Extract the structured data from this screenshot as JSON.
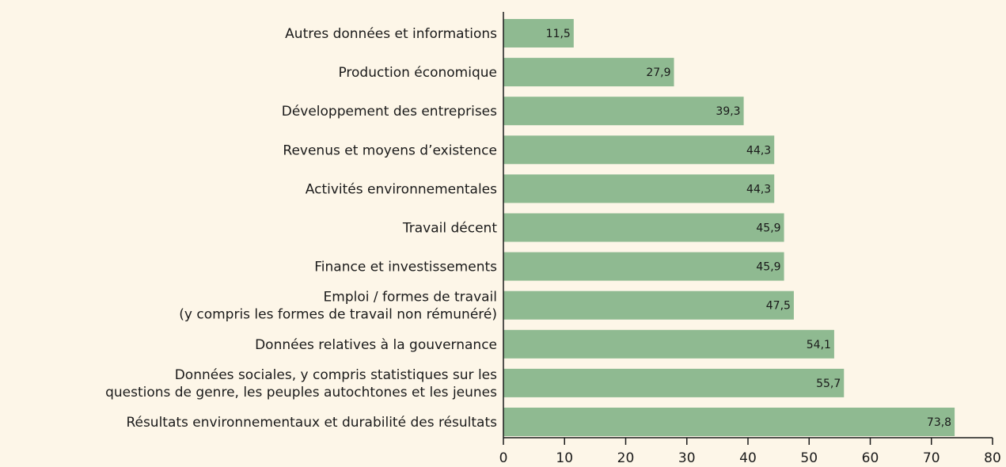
{
  "chart_data": {
    "type": "barh",
    "categories": [
      [
        "Autres données et informations"
      ],
      [
        "Production économique"
      ],
      [
        "Développement des entreprises"
      ],
      [
        "Revenus et moyens d’existence"
      ],
      [
        "Activités environnementales"
      ],
      [
        "Travail décent"
      ],
      [
        "Finance et investissements"
      ],
      [
        "Emploi / formes de travail",
        "(y compris les formes de travail non rémunéré)"
      ],
      [
        "Données relatives à la gouvernance"
      ],
      [
        "Données sociales, y compris statistiques sur les",
        "questions de genre, les peuples autochtones et les jeunes"
      ],
      [
        "Résultats environnementaux et durabilité des résultats"
      ]
    ],
    "values": [
      11.5,
      27.9,
      39.3,
      44.3,
      44.3,
      45.9,
      45.9,
      47.5,
      54.1,
      55.7,
      73.8
    ],
    "value_labels": [
      "11,5",
      "27,9",
      "39,3",
      "44,3",
      "44,3",
      "45,9",
      "45,9",
      "47,5",
      "54,1",
      "55,7",
      "73,8"
    ],
    "color": "#8fba91",
    "xlim": [
      0,
      80
    ],
    "xticks": [
      0,
      10,
      20,
      30,
      40,
      50,
      60,
      70,
      80
    ]
  }
}
